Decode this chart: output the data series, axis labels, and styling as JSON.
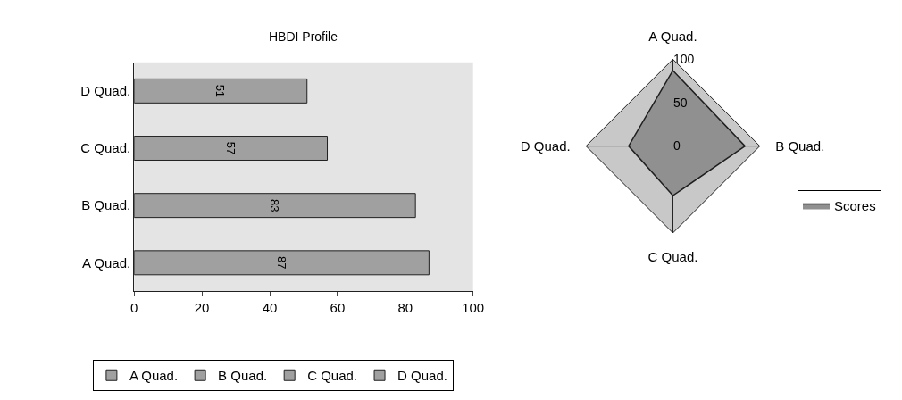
{
  "chart_data": [
    {
      "type": "bar",
      "title": "HBDI Profile",
      "orientation": "horizontal",
      "categories": [
        "D Quad.",
        "C Quad.",
        "B Quad.",
        "A Quad."
      ],
      "series": [
        {
          "name": "A Quad.",
          "color": "#a0a0a0",
          "values": [
            null,
            null,
            null,
            87
          ]
        },
        {
          "name": "B Quad.",
          "color": "#a0a0a0",
          "values": [
            null,
            null,
            83,
            null
          ]
        },
        {
          "name": "C Quad.",
          "color": "#a0a0a0",
          "values": [
            null,
            57,
            null,
            null
          ]
        },
        {
          "name": "D Quad.",
          "color": "#a0a0a0",
          "values": [
            51,
            null,
            null,
            null
          ]
        }
      ],
      "xlim": [
        0,
        100
      ],
      "xticks": [
        0,
        20,
        40,
        60,
        80,
        100
      ],
      "data_labels": true,
      "grid": false,
      "legend": "bottom"
    },
    {
      "type": "radar",
      "categories": [
        "A Quad.",
        "B Quad.",
        "C Quad.",
        "D Quad."
      ],
      "series": [
        {
          "name": "Scores",
          "color": "#909090",
          "values": [
            87,
            83,
            57,
            51
          ]
        }
      ],
      "ylim": [
        0,
        100
      ],
      "yticks": [
        0,
        50,
        100
      ],
      "legend": "right"
    }
  ]
}
